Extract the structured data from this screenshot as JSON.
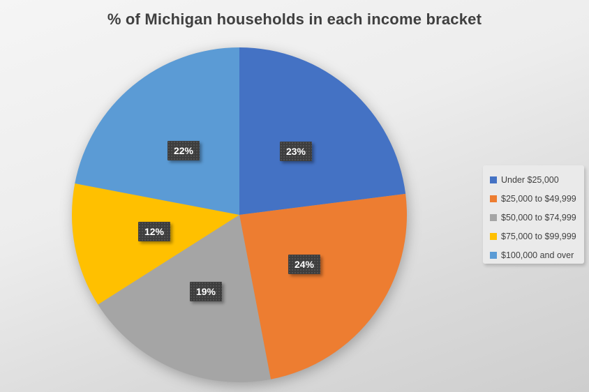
{
  "title": "% of Michigan households in each income bracket",
  "chart_data": {
    "type": "pie",
    "title": "% of Michigan households in each income bracket",
    "categories": [
      "Under $25,000",
      "$25,000 to $49,999",
      "$50,000 to $74,999",
      "$75,000 to $99,999",
      "$100,000 and over"
    ],
    "values": [
      23,
      24,
      19,
      12,
      22
    ],
    "colors": [
      "#4472C4",
      "#ED7D31",
      "#A5A5A5",
      "#FFC000",
      "#5B9BD5"
    ],
    "data_labels": [
      "23%",
      "24%",
      "19%",
      "12%",
      "22%"
    ],
    "start_angle_deg": 0,
    "direction": "clockwise",
    "legend_position": "right",
    "data_label_style": {
      "background": "#3d3d3d",
      "text_color": "#ffffff"
    }
  },
  "legend": {
    "items": [
      {
        "label": "Under $25,000",
        "color": "#4472C4"
      },
      {
        "label": "$25,000 to $49,999",
        "color": "#ED7D31"
      },
      {
        "label": "$50,000 to $74,999",
        "color": "#A5A5A5"
      },
      {
        "label": "$75,000 to $99,999",
        "color": "#FFC000"
      },
      {
        "label": "$100,000 and over",
        "color": "#5B9BD5"
      }
    ]
  }
}
